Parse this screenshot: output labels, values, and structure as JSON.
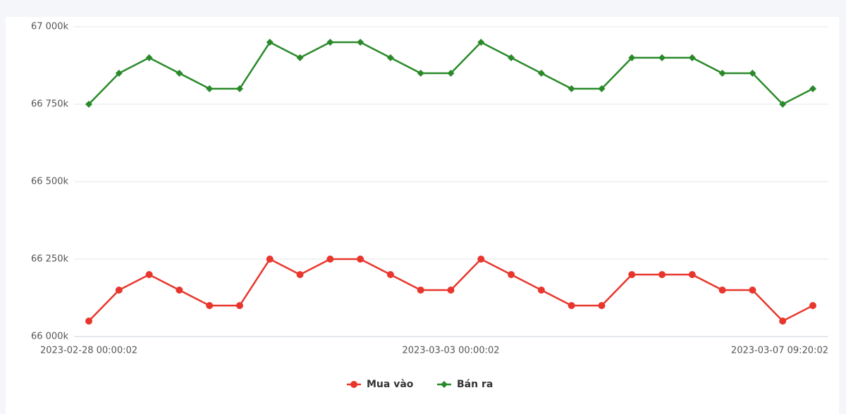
{
  "chart_data": {
    "type": "line",
    "categories": [
      "2023-02-28 00:00:02",
      null,
      null,
      null,
      null,
      null,
      null,
      null,
      null,
      null,
      null,
      null,
      "2023-03-03 00:00:02",
      null,
      null,
      null,
      null,
      null,
      null,
      null,
      null,
      null,
      null,
      null,
      "2023-03-07 09:20:02"
    ],
    "series": [
      {
        "name": "Mua vào",
        "color": "#e8362c",
        "marker": "circle",
        "values": [
          66050,
          66150,
          66200,
          66150,
          66100,
          66100,
          66250,
          66200,
          66250,
          66250,
          66200,
          66150,
          66150,
          66250,
          66200,
          66150,
          66100,
          66100,
          66200,
          66200,
          66200,
          66150,
          66150,
          66050,
          66100
        ]
      },
      {
        "name": "Bán ra",
        "color": "#2a8a2a",
        "marker": "diamond",
        "values": [
          66750,
          66850,
          66900,
          66850,
          66800,
          66800,
          66950,
          66900,
          66950,
          66950,
          66900,
          66850,
          66850,
          66950,
          66900,
          66850,
          66800,
          66800,
          66900,
          66900,
          66900,
          66850,
          66850,
          66750,
          66800
        ]
      }
    ],
    "ylim": [
      66000,
      67000
    ],
    "yticks": [
      {
        "value": 66000,
        "label": "66 000k"
      },
      {
        "value": 66250,
        "label": "66 250k"
      },
      {
        "value": 66500,
        "label": "66 500k"
      },
      {
        "value": 66750,
        "label": "66 750k"
      },
      {
        "value": 67000,
        "label": "67 000k"
      }
    ],
    "grid": true,
    "legend": "bottom"
  }
}
